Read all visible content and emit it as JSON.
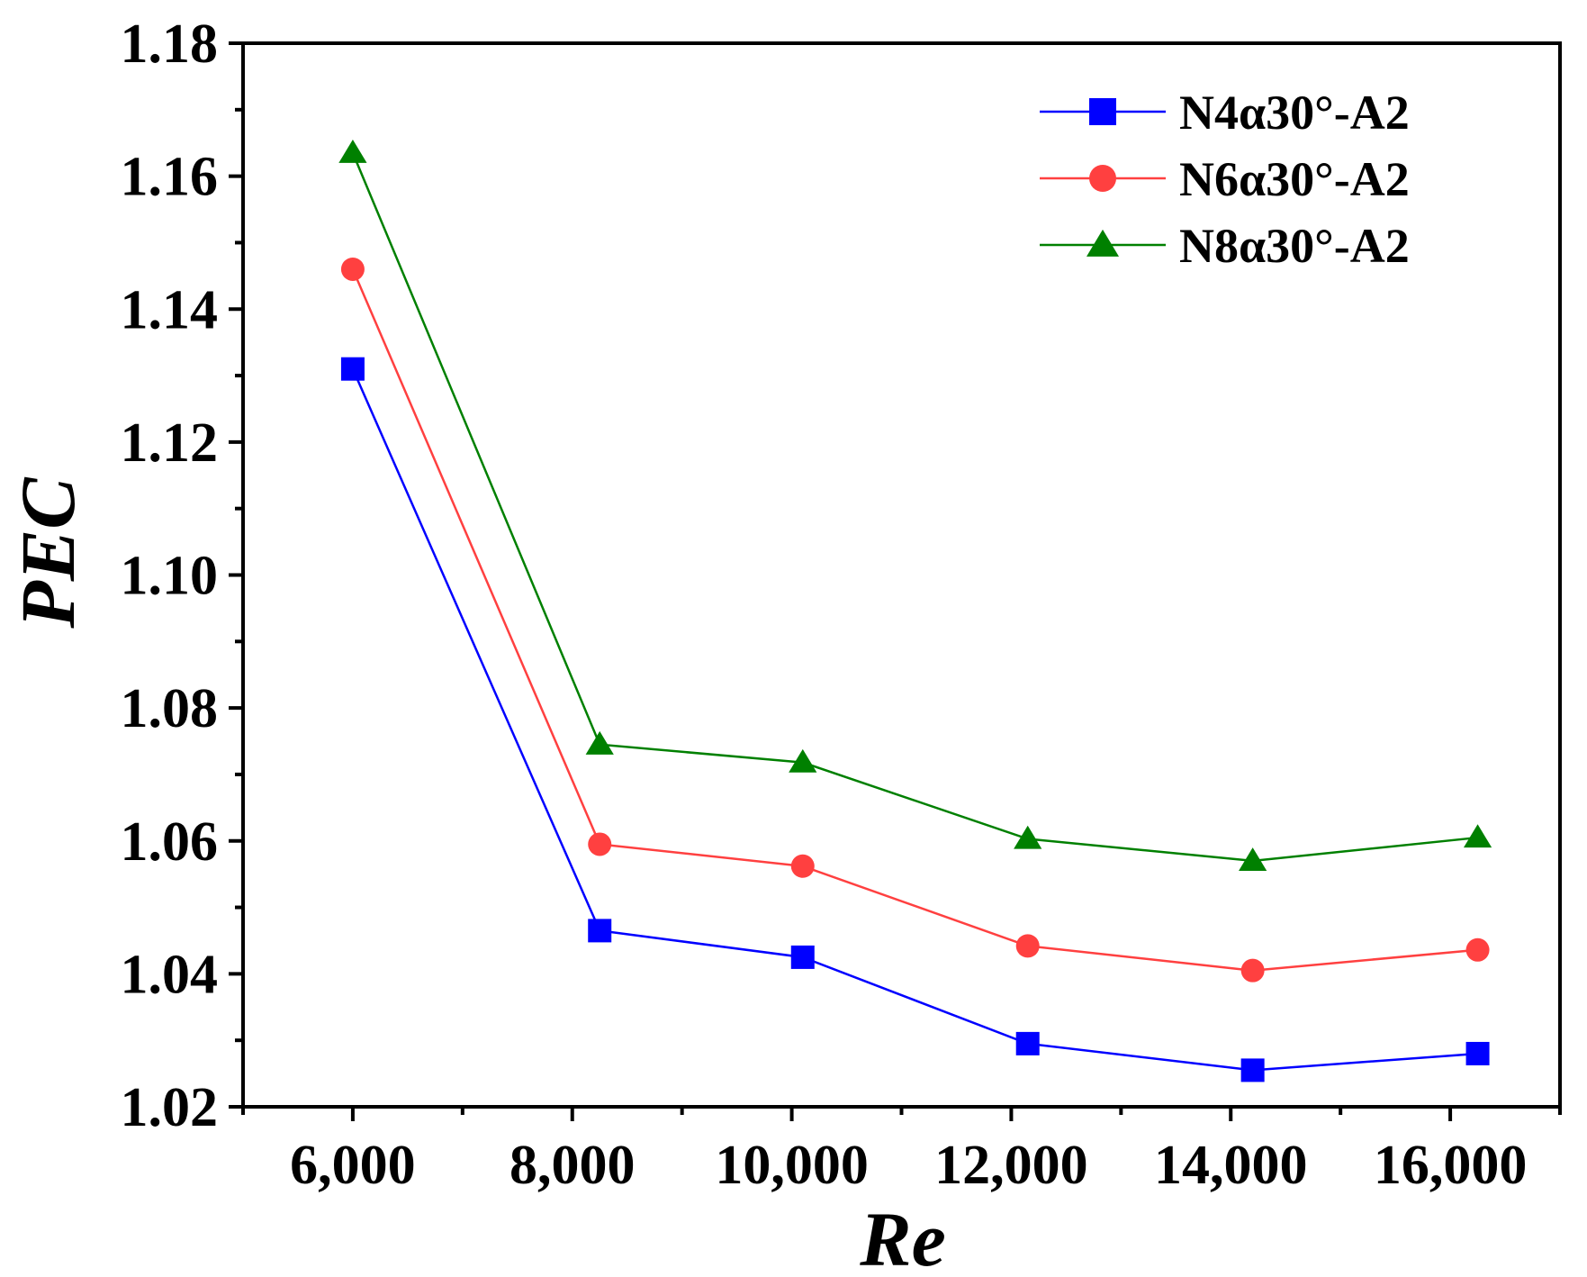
{
  "chart_data": {
    "type": "line",
    "title": "",
    "xlabel": "Re",
    "ylabel": "PEC",
    "xlim": [
      5000,
      17000
    ],
    "ylim": [
      1.02,
      1.18
    ],
    "grid": false,
    "legend_position": "top-right",
    "x_ticks": [
      6000,
      8000,
      10000,
      12000,
      14000,
      16000
    ],
    "x_tick_labels": [
      "6,000",
      "8,000",
      "10,000",
      "12,000",
      "14,000",
      "16,000"
    ],
    "y_ticks": [
      1.02,
      1.04,
      1.06,
      1.08,
      1.1,
      1.12,
      1.14,
      1.16,
      1.18
    ],
    "y_tick_labels": [
      "1.02",
      "1.04",
      "1.06",
      "1.08",
      "1.10",
      "1.12",
      "1.14",
      "1.16",
      "1.18"
    ],
    "x": [
      6000,
      8250,
      10100,
      12150,
      14200,
      16250
    ],
    "series": [
      {
        "name": "N4α30°-A2",
        "color": "#0000ff",
        "marker": "square",
        "values": [
          1.131,
          1.0465,
          1.0425,
          1.0295,
          1.0255,
          1.028
        ]
      },
      {
        "name": "N6α30°-A2",
        "color": "#ff4040",
        "marker": "circle",
        "values": [
          1.146,
          1.0595,
          1.0562,
          1.0442,
          1.0405,
          1.0436
        ]
      },
      {
        "name": "N8α30°-A2",
        "color": "#008000",
        "marker": "triangle",
        "values": [
          1.1635,
          1.0745,
          1.0718,
          1.0603,
          1.057,
          1.0605
        ]
      }
    ]
  }
}
